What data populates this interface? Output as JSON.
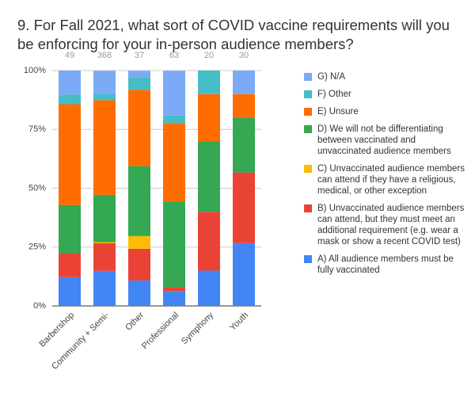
{
  "chart_data": {
    "type": "stacked_bar",
    "title": "9. For Fall 2021, what sort of COVID vaccine requirements will you be enforcing for your in-person audience members?",
    "categories": [
      "Barbershop",
      "Community + Semi-",
      "Other",
      "Professional",
      "Symphony",
      "Youth"
    ],
    "annotations": [
      49,
      368,
      37,
      63,
      20,
      30
    ],
    "series": [
      {
        "name": "A) All audience members must be fully vaccinated",
        "color": "#4285f4",
        "values": [
          12.2,
          14.9,
          10.8,
          6.3,
          15,
          26.7
        ]
      },
      {
        "name": "B) Unvaccinated audience members can attend, but they must meet an additional requirement (e.g. wear a mask or show a recent COVID test)",
        "color": "#ea4335",
        "values": [
          10.2,
          11.7,
          13.5,
          1.6,
          25,
          30
        ]
      },
      {
        "name": "C) Unvaccinated audience members can attend if they have a religious, medical, or other exception",
        "color": "#fbbc04",
        "values": [
          0,
          0.5,
          5.4,
          0,
          0,
          0
        ]
      },
      {
        "name": "D) We will not be differentiating between vaccinated and unvaccinated audience members",
        "color": "#34a853",
        "values": [
          20.4,
          20.1,
          29.7,
          36.5,
          30,
          23.3
        ]
      },
      {
        "name": "E) Unsure",
        "color": "#ff6d01",
        "values": [
          42.9,
          40.2,
          32.4,
          33.3,
          20,
          10
        ]
      },
      {
        "name": "F) Other",
        "color": "#46bdc6",
        "values": [
          4.1,
          2.7,
          5.4,
          3.2,
          10,
          0
        ]
      },
      {
        "name": "G) N/A",
        "color": "#7baaf7",
        "values": [
          10.2,
          9.8,
          2.7,
          19,
          0,
          10
        ]
      }
    ],
    "ylim": [
      0,
      100
    ],
    "yticks": [
      {
        "value": 0,
        "label": "0%"
      },
      {
        "value": 25,
        "label": "25%"
      },
      {
        "value": 50,
        "label": "50%"
      },
      {
        "value": 75,
        "label": "75%"
      },
      {
        "value": 100,
        "label": "100%"
      }
    ],
    "grid": true,
    "legend": "right"
  }
}
